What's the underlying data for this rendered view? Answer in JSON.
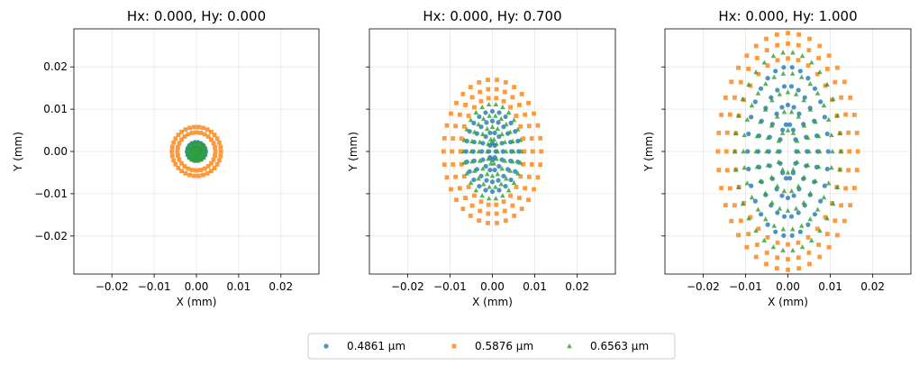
{
  "chart_data": {
    "type": "scatter",
    "legend": {
      "placement": "bottom-center",
      "entries": [
        {
          "label": "0.4861 µm",
          "color": "#1f77b4",
          "marker": "circle"
        },
        {
          "label": "0.5876 µm",
          "color": "#ff7f0e",
          "marker": "square"
        },
        {
          "label": "0.6563 µm",
          "color": "#2ca02c",
          "marker": "triangle"
        }
      ]
    },
    "panels": [
      {
        "title": "Hx: 0.000, Hy: 0.000",
        "xlabel": "X (mm)",
        "ylabel": "Y (mm)",
        "xlim": [
          -0.029,
          0.029
        ],
        "ylim": [
          -0.029,
          0.029
        ],
        "xticks": [
          -0.02,
          -0.01,
          0.0,
          0.01,
          0.02
        ],
        "xtick_labels": [
          "−0.02",
          "−0.01",
          "0.00",
          "0.01",
          "0.02"
        ],
        "yticks": [
          -0.02,
          -0.01,
          0.0,
          0.01,
          0.02
        ],
        "ytick_labels": [
          "−0.02",
          "−0.01",
          "0.00",
          "0.01",
          "0.02"
        ],
        "show_yticklabels": true,
        "grid": true,
        "series": [
          {
            "name": "0.4861 µm",
            "rings": [
              {
                "rx": 0.0012,
                "ry": 0.0012,
                "n": 12
              },
              {
                "rx": 0.0022,
                "ry": 0.0022,
                "n": 18
              }
            ]
          },
          {
            "name": "0.5876 µm",
            "rings": [
              {
                "rx": 0.0045,
                "ry": 0.0045,
                "n": 28
              },
              {
                "rx": 0.0058,
                "ry": 0.0058,
                "n": 34
              }
            ]
          },
          {
            "name": "0.6563 µm",
            "rings": [
              {
                "rx": 0.0006,
                "ry": 0.0006,
                "n": 8
              },
              {
                "rx": 0.0014,
                "ry": 0.0014,
                "n": 14
              },
              {
                "rx": 0.0022,
                "ry": 0.0022,
                "n": 18
              }
            ]
          }
        ]
      },
      {
        "title": "Hx: 0.000, Hy: 0.700",
        "xlabel": "X (mm)",
        "ylabel": "Y (mm)",
        "xlim": [
          -0.029,
          0.029
        ],
        "ylim": [
          -0.029,
          0.029
        ],
        "xticks": [
          -0.02,
          -0.01,
          0.0,
          0.01,
          0.02
        ],
        "xtick_labels": [
          "−0.02",
          "−0.01",
          "0.00",
          "0.01",
          "0.02"
        ],
        "yticks": [
          -0.02,
          -0.01,
          0.0,
          0.01,
          0.02
        ],
        "ytick_labels": [],
        "show_yticklabels": false,
        "grid": true,
        "series": [
          {
            "name": "0.5876 µm",
            "rings": [
              {
                "rx": 0.0115,
                "ry": 0.017,
                "n": 34
              },
              {
                "rx": 0.0095,
                "ry": 0.0148,
                "n": 30
              },
              {
                "rx": 0.0075,
                "ry": 0.0127,
                "n": 26
              }
            ]
          },
          {
            "name": "0.4861 µm",
            "rings": [
              {
                "rx": 0.0062,
                "ry": 0.0095,
                "n": 24
              },
              {
                "rx": 0.0045,
                "ry": 0.0072,
                "n": 20
              },
              {
                "rx": 0.0025,
                "ry": 0.0045,
                "n": 14
              },
              {
                "rx": 0.0008,
                "ry": 0.002,
                "n": 8
              }
            ]
          },
          {
            "name": "0.6563 µm",
            "rings": [
              {
                "rx": 0.0068,
                "ry": 0.0112,
                "n": 26
              },
              {
                "rx": 0.005,
                "ry": 0.0085,
                "n": 22
              },
              {
                "rx": 0.0032,
                "ry": 0.0058,
                "n": 16
              },
              {
                "rx": 0.0012,
                "ry": 0.003,
                "n": 10
              }
            ]
          }
        ]
      },
      {
        "title": "Hx: 0.000, Hy: 1.000",
        "xlabel": "X (mm)",
        "ylabel": "Y (mm)",
        "xlim": [
          -0.029,
          0.029
        ],
        "ylim": [
          -0.029,
          0.029
        ],
        "xticks": [
          -0.02,
          -0.01,
          0.0,
          0.01,
          0.02
        ],
        "xtick_labels": [
          "−0.02",
          "−0.01",
          "0.00",
          "0.01",
          "0.02"
        ],
        "yticks": [
          -0.02,
          -0.01,
          0.0,
          0.01,
          0.02
        ],
        "ytick_labels": [],
        "show_yticklabels": false,
        "grid": true,
        "series": [
          {
            "name": "0.5876 µm",
            "rings": [
              {
                "rx": 0.0165,
                "ry": 0.028,
                "n": 40
              },
              {
                "rx": 0.0145,
                "ry": 0.0255,
                "n": 36
              },
              {
                "rx": 0.0125,
                "ry": 0.022,
                "n": 32
              }
            ]
          },
          {
            "name": "0.4861 µm",
            "rings": [
              {
                "rx": 0.0095,
                "ry": 0.02,
                "n": 30
              },
              {
                "rx": 0.007,
                "ry": 0.0155,
                "n": 26
              },
              {
                "rx": 0.0045,
                "ry": 0.011,
                "n": 20
              },
              {
                "rx": 0.002,
                "ry": 0.0065,
                "n": 14
              }
            ]
          },
          {
            "name": "0.6563 µm",
            "rings": [
              {
                "rx": 0.0125,
                "ry": 0.0235,
                "n": 34
              },
              {
                "rx": 0.0105,
                "ry": 0.0185,
                "n": 30
              },
              {
                "rx": 0.0075,
                "ry": 0.014,
                "n": 24
              },
              {
                "rx": 0.005,
                "ry": 0.0095,
                "n": 18
              },
              {
                "rx": 0.0025,
                "ry": 0.005,
                "n": 12
              }
            ]
          }
        ]
      }
    ]
  }
}
